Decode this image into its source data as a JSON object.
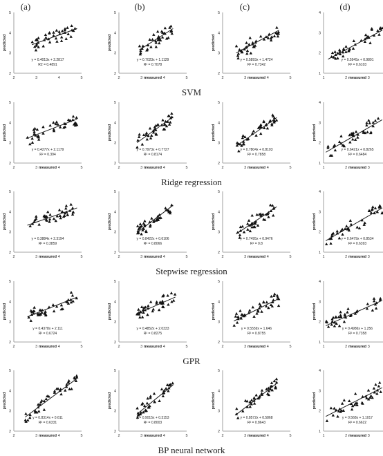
{
  "column_labels": [
    "(a)",
    "(b)",
    "(c)",
    "(d)"
  ],
  "rows": [
    {
      "method": "SVM"
    },
    {
      "method": "Ridge regression"
    },
    {
      "method": "Stepwise regression"
    },
    {
      "method": "GPR"
    },
    {
      "method": "BP neural network"
    }
  ],
  "colors": {
    "marker": "#111111",
    "line": "#1a1a1a",
    "axis": "#888888"
  },
  "chart_data": [
    {
      "type": "scatter",
      "row": 0,
      "col": 0,
      "xlabel": "",
      "ylabel": "predicted",
      "xlim": [
        2,
        5
      ],
      "ylim": [
        2,
        5
      ],
      "xticks": [
        2,
        3,
        4,
        5
      ],
      "yticks": [
        2,
        3,
        4,
        5
      ],
      "equation": "y = 0.4013x + 2.2817",
      "r2": "R2 = 0.4891",
      "fit": {
        "slope": 0.4013,
        "intercept": 2.2817
      },
      "xrange": [
        2.8,
        4.8
      ]
    },
    {
      "type": "scatter",
      "row": 0,
      "col": 1,
      "xlabel": "measured",
      "ylabel": "predicted",
      "xlim": [
        2,
        5
      ],
      "ylim": [
        2,
        5
      ],
      "xticks": [
        2,
        3,
        4,
        5
      ],
      "yticks": [
        2,
        3,
        4,
        5
      ],
      "equation": "y = 0.7023x + 1.1129",
      "r2": "R² = 0.7078",
      "fit": {
        "slope": 0.7023,
        "intercept": 1.1129
      },
      "xrange": [
        2.9,
        4.4
      ]
    },
    {
      "type": "scatter",
      "row": 0,
      "col": 2,
      "xlabel": "measured",
      "ylabel": "predicted",
      "xlim": [
        2,
        5
      ],
      "ylim": [
        2,
        5
      ],
      "xticks": [
        2,
        3,
        4,
        5
      ],
      "yticks": [
        2,
        3,
        4,
        5
      ],
      "equation": "y = 0.5893x + 1.4724",
      "r2": "R² = 0.7342",
      "fit": {
        "slope": 0.5893,
        "intercept": 1.4724
      },
      "xrange": [
        2.6,
        4.5
      ]
    },
    {
      "type": "scatter",
      "row": 0,
      "col": 3,
      "xlabel": "measured",
      "ylabel": "",
      "xlim": [
        1,
        4
      ],
      "ylim": [
        1,
        4
      ],
      "xticks": [
        1,
        2,
        3,
        4
      ],
      "yticks": [
        1,
        2,
        3,
        4
      ],
      "equation": "y = 0.5945x + 0.9801",
      "r2": "R² = 0.6103",
      "fit": {
        "slope": 0.5945,
        "intercept": 0.9801
      },
      "xrange": [
        1.2,
        3.6
      ]
    },
    {
      "type": "scatter",
      "row": 1,
      "col": 0,
      "xlabel": "measured",
      "ylabel": "predicted",
      "xlim": [
        2,
        5
      ],
      "ylim": [
        2,
        5
      ],
      "xticks": [
        2,
        3,
        4,
        5
      ],
      "yticks": [
        2,
        3,
        4,
        5
      ],
      "equation": "y = 0.4277x + 2.1179",
      "r2": "R² = 0.394",
      "fit": {
        "slope": 0.4277,
        "intercept": 2.1179
      },
      "xrange": [
        2.6,
        4.8
      ]
    },
    {
      "type": "scatter",
      "row": 1,
      "col": 1,
      "xlabel": "measured",
      "ylabel": "predicted",
      "xlim": [
        2,
        5
      ],
      "ylim": [
        2,
        5
      ],
      "xticks": [
        2,
        3,
        4,
        5
      ],
      "yticks": [
        2,
        3,
        4,
        5
      ],
      "equation": "y = 0.7973x + 0.7727",
      "r2": "R² = 0.8174",
      "fit": {
        "slope": 0.7973,
        "intercept": 0.7727
      },
      "xrange": [
        2.8,
        4.4
      ]
    },
    {
      "type": "scatter",
      "row": 1,
      "col": 2,
      "xlabel": "measured",
      "ylabel": "predicted",
      "xlim": [
        2,
        5
      ],
      "ylim": [
        2,
        5
      ],
      "xticks": [
        2,
        3,
        4,
        5
      ],
      "yticks": [
        2,
        3,
        4,
        5
      ],
      "equation": "y = 0.7804x + 0.8103",
      "r2": "R² = 0.7858",
      "fit": {
        "slope": 0.7804,
        "intercept": 0.8103
      },
      "xrange": [
        2.6,
        4.4
      ]
    },
    {
      "type": "scatter",
      "row": 1,
      "col": 3,
      "xlabel": "measured",
      "ylabel": "predicted",
      "xlim": [
        1,
        4
      ],
      "ylim": [
        1,
        4
      ],
      "xticks": [
        1,
        2,
        3,
        4
      ],
      "yticks": [
        1,
        2,
        3,
        4
      ],
      "equation": "y = 0.6421x + 0.8265",
      "r2": "R² = 0.6484",
      "fit": {
        "slope": 0.6421,
        "intercept": 0.8265
      },
      "xrange": [
        1.1,
        3.6
      ]
    },
    {
      "type": "scatter",
      "row": 2,
      "col": 0,
      "xlabel": "measured",
      "ylabel": "predicted",
      "xlim": [
        2,
        5
      ],
      "ylim": [
        2,
        5
      ],
      "xticks": [
        2,
        3,
        4,
        5
      ],
      "yticks": [
        2,
        3,
        4,
        5
      ],
      "equation": "y = 0.3884x + 2.3194",
      "r2": "R² = 0.3859",
      "fit": {
        "slope": 0.3884,
        "intercept": 2.3194
      },
      "xrange": [
        2.6,
        4.8
      ]
    },
    {
      "type": "scatter",
      "row": 2,
      "col": 1,
      "xlabel": "measured",
      "ylabel": "predicted",
      "xlim": [
        2,
        5
      ],
      "ylim": [
        2,
        5
      ],
      "xticks": [
        2,
        3,
        4,
        5
      ],
      "yticks": [
        2,
        3,
        4,
        5
      ],
      "equation": "y = 0.8422x + 0.6106",
      "r2": "R² = 0.8066",
      "fit": {
        "slope": 0.8422,
        "intercept": 0.6106
      },
      "xrange": [
        2.8,
        4.4
      ]
    },
    {
      "type": "scatter",
      "row": 2,
      "col": 2,
      "xlabel": "measured",
      "ylabel": "predicted",
      "xlim": [
        2,
        5
      ],
      "ylim": [
        2,
        5
      ],
      "xticks": [
        2,
        3,
        4,
        5
      ],
      "yticks": [
        2,
        3,
        4,
        5
      ],
      "equation": "y = 0.7495x + 0.9476",
      "r2": "R² = 0.8",
      "fit": {
        "slope": 0.7495,
        "intercept": 0.9476
      },
      "xrange": [
        2.6,
        4.4
      ]
    },
    {
      "type": "scatter",
      "row": 2,
      "col": 3,
      "xlabel": "measured",
      "ylabel": "predicted",
      "xlim": [
        1,
        4
      ],
      "ylim": [
        1,
        4
      ],
      "xticks": [
        1,
        2,
        3,
        4
      ],
      "yticks": [
        1,
        2,
        3,
        4
      ],
      "equation": "y = 0.6479x + 0.8534",
      "r2": "R² = 0.6393",
      "fit": {
        "slope": 0.6479,
        "intercept": 0.8534
      },
      "xrange": [
        1.1,
        3.6
      ]
    },
    {
      "type": "scatter",
      "row": 3,
      "col": 0,
      "xlabel": "measured",
      "ylabel": "predicted",
      "xlim": [
        2,
        5
      ],
      "ylim": [
        2,
        5
      ],
      "xticks": [
        2,
        3,
        4,
        5
      ],
      "yticks": [
        2,
        3,
        4,
        5
      ],
      "equation": "y = 0.4378x + 2.111",
      "r2": "R² = 0.6724",
      "fit": {
        "slope": 0.4378,
        "intercept": 2.111
      },
      "xrange": [
        2.6,
        4.8
      ]
    },
    {
      "type": "scatter",
      "row": 3,
      "col": 1,
      "xlabel": "measured",
      "ylabel": "predicted",
      "xlim": [
        2,
        5
      ],
      "ylim": [
        2,
        5
      ],
      "xticks": [
        2,
        3,
        4,
        5
      ],
      "yticks": [
        2,
        3,
        4,
        5
      ],
      "equation": "y = 0.4852x + 2.0333",
      "r2": "R² = 0.8275",
      "fit": {
        "slope": 0.4852,
        "intercept": 2.0333
      },
      "xrange": [
        2.8,
        4.5
      ]
    },
    {
      "type": "scatter",
      "row": 3,
      "col": 2,
      "xlabel": "measured",
      "ylabel": "predicted",
      "xlim": [
        2,
        5
      ],
      "ylim": [
        2,
        5
      ],
      "xticks": [
        2,
        3,
        4,
        5
      ],
      "yticks": [
        2,
        3,
        4,
        5
      ],
      "equation": "y = 0.5559x + 1.646",
      "r2": "R² = 0.8755",
      "fit": {
        "slope": 0.5559,
        "intercept": 1.646
      },
      "xrange": [
        2.5,
        4.5
      ]
    },
    {
      "type": "scatter",
      "row": 3,
      "col": 3,
      "xlabel": "measured",
      "ylabel": "predicted",
      "xlim": [
        1,
        4
      ],
      "ylim": [
        1,
        4
      ],
      "xticks": [
        1,
        2,
        3,
        4
      ],
      "yticks": [
        1,
        2,
        3,
        4
      ],
      "equation": "y = 0.4986x + 1.256",
      "r2": "R² = 0.7358",
      "fit": {
        "slope": 0.4986,
        "intercept": 1.256
      },
      "xrange": [
        1.1,
        3.6
      ]
    },
    {
      "type": "scatter",
      "row": 4,
      "col": 0,
      "xlabel": "measured",
      "ylabel": "predicted",
      "xlim": [
        2,
        5
      ],
      "ylim": [
        2,
        5
      ],
      "xticks": [
        2,
        3,
        4,
        5
      ],
      "yticks": [
        2,
        3,
        4,
        5
      ],
      "equation": "y = 0.8314x + 0.611",
      "r2": "R² = 0.6331",
      "fit": {
        "slope": 0.8314,
        "intercept": 0.611
      },
      "xrange": [
        2.5,
        4.8
      ]
    },
    {
      "type": "scatter",
      "row": 4,
      "col": 1,
      "xlabel": "measured",
      "ylabel": "predicted",
      "xlim": [
        2,
        5
      ],
      "ylim": [
        2,
        5
      ],
      "xticks": [
        2,
        3,
        4,
        5
      ],
      "yticks": [
        2,
        3,
        4,
        5
      ],
      "equation": "y = 0.9015x + 0.3153",
      "r2": "R² = 0.8003",
      "fit": {
        "slope": 0.9015,
        "intercept": 0.3153
      },
      "xrange": [
        2.8,
        4.4
      ]
    },
    {
      "type": "scatter",
      "row": 4,
      "col": 2,
      "xlabel": "measured",
      "ylabel": "predicted",
      "xlim": [
        2,
        5
      ],
      "ylim": [
        2,
        5
      ],
      "xticks": [
        2,
        3,
        4,
        5
      ],
      "yticks": [
        2,
        3,
        4,
        5
      ],
      "equation": "y = 0.8572x + 0.5868",
      "r2": "R² = 0.8643",
      "fit": {
        "slope": 0.8572,
        "intercept": 0.5868
      },
      "xrange": [
        2.6,
        4.4
      ]
    },
    {
      "type": "scatter",
      "row": 4,
      "col": 3,
      "xlabel": "measured",
      "ylabel": "predicted",
      "xlim": [
        1,
        4
      ],
      "ylim": [
        1,
        4
      ],
      "xticks": [
        1,
        2,
        3,
        4
      ],
      "yticks": [
        1,
        2,
        3,
        4
      ],
      "equation": "y = 0.568x + 1.1017",
      "r2": "R² = 0.6622",
      "fit": {
        "slope": 0.568,
        "intercept": 1.1017
      },
      "xrange": [
        1.1,
        3.6
      ]
    }
  ]
}
